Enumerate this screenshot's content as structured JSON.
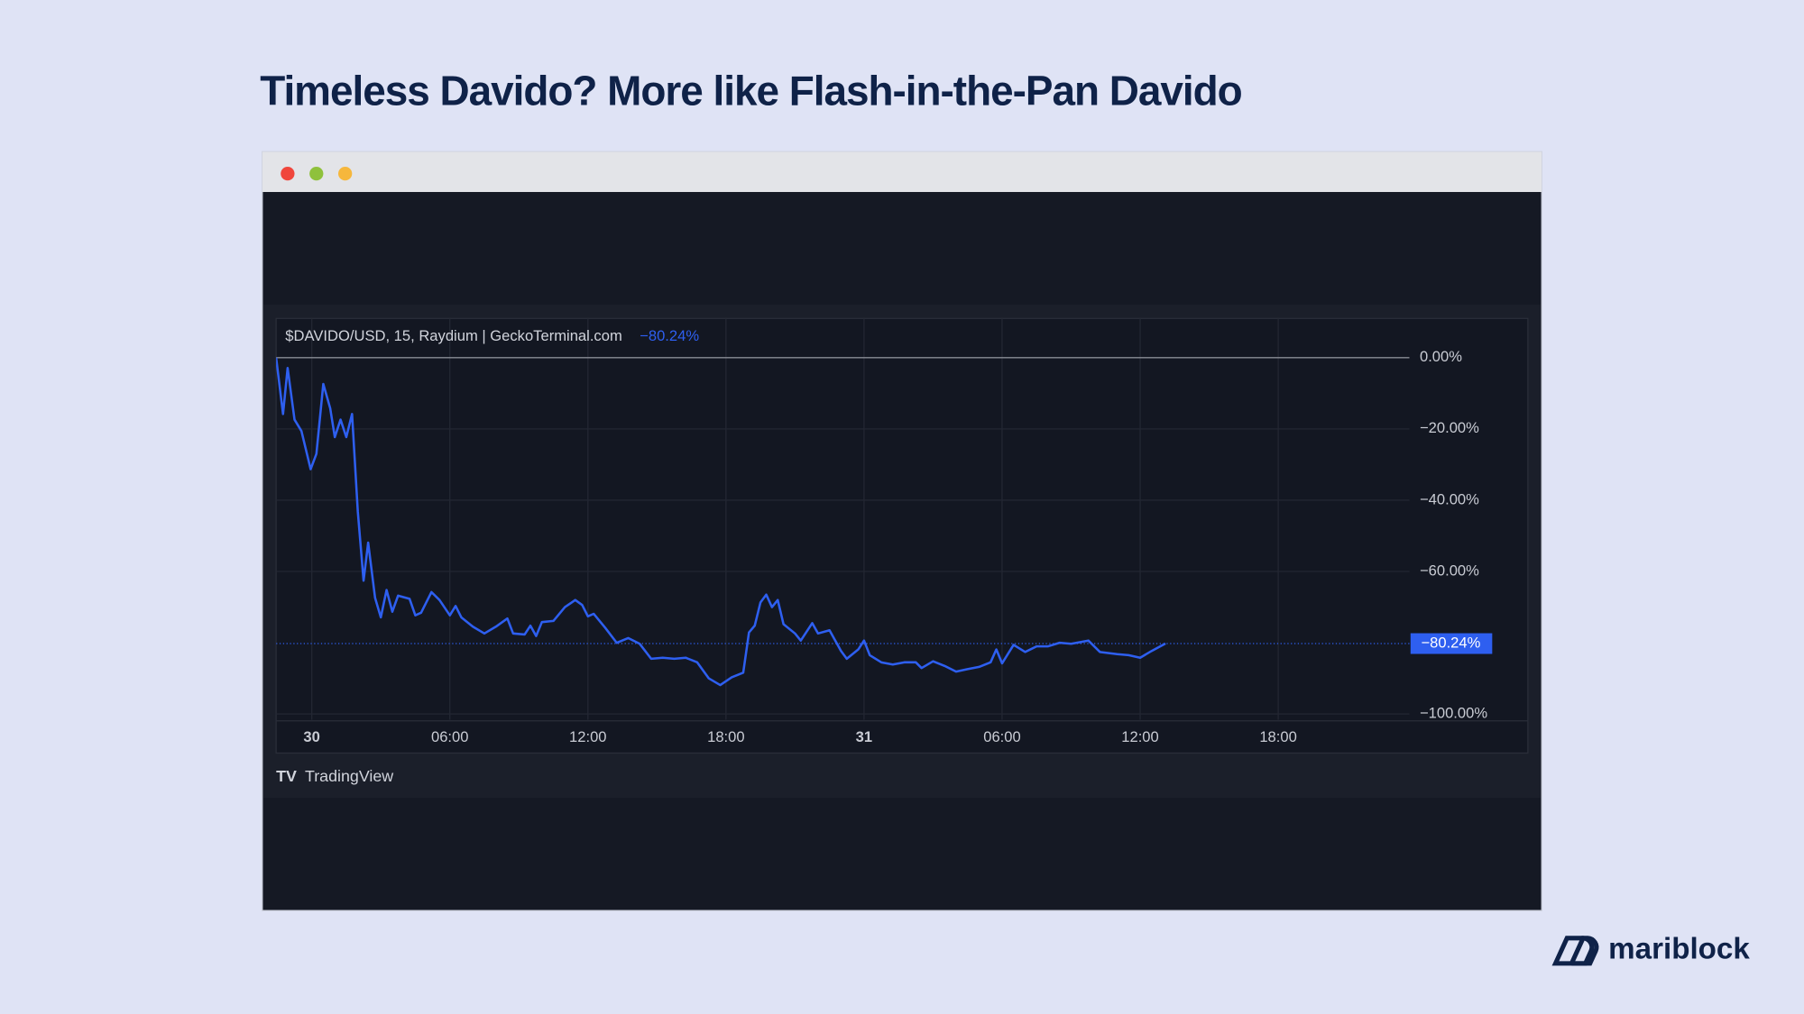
{
  "chart_data": {
    "type": "line",
    "title": "Timeless Davido? More like Flash-in-the-Pan Davido",
    "symbol_label": "$DAVIDO/USD, 15, Raydium | GeckoTerminal.com",
    "current": {
      "value": -80.24,
      "label": "−80.24%"
    },
    "color": "#2e5ff0",
    "grid": true,
    "xlim": [
      -1.55,
      47.7
    ],
    "ylim": [
      -101.6,
      11
    ],
    "xticks": [
      {
        "value": 0,
        "label": "30"
      },
      {
        "value": 6,
        "label": "06:00"
      },
      {
        "value": 12,
        "label": "12:00"
      },
      {
        "value": 18,
        "label": "18:00"
      },
      {
        "value": 24,
        "label": "31"
      },
      {
        "value": 30,
        "label": "06:00"
      },
      {
        "value": 36,
        "label": "12:00"
      },
      {
        "value": 42,
        "label": "18:00"
      }
    ],
    "yticks": [
      {
        "value": 0,
        "label": "0.00%"
      },
      {
        "value": -20,
        "label": "−20.00%"
      },
      {
        "value": -40,
        "label": "−40.00%"
      },
      {
        "value": -60,
        "label": "−60.00%"
      },
      {
        "value": -100,
        "label": "−100.00%"
      }
    ],
    "x": [
      -1.55,
      -1.25,
      -1.05,
      -0.75,
      -0.45,
      -0.05,
      0.2,
      0.5,
      0.8,
      1.0,
      1.25,
      1.5,
      1.75,
      2.0,
      2.25,
      2.45,
      2.75,
      3.0,
      3.25,
      3.5,
      3.75,
      4.25,
      4.5,
      4.75,
      5.2,
      5.55,
      6.0,
      6.25,
      6.5,
      7.0,
      7.5,
      8.0,
      8.5,
      8.75,
      9.25,
      9.5,
      9.75,
      10.0,
      10.5,
      11.0,
      11.45,
      11.75,
      12.0,
      12.25,
      12.75,
      13.25,
      13.75,
      14.25,
      14.75,
      15.25,
      15.75,
      16.25,
      16.75,
      17.25,
      17.75,
      18.25,
      18.75,
      19.0,
      19.25,
      19.5,
      19.75,
      20.0,
      20.25,
      20.5,
      21.0,
      21.25,
      21.75,
      22.0,
      22.5,
      23.0,
      23.25,
      23.75,
      24.0,
      24.25,
      24.75,
      25.25,
      25.75,
      26.25,
      26.5,
      27.0,
      27.5,
      28.0,
      28.5,
      29.0,
      29.5,
      29.75,
      30.0,
      30.5,
      31.0,
      31.5,
      32.0,
      32.5,
      33.0,
      33.75,
      34.25,
      35.0,
      35.5,
      36.0,
      36.5,
      37.1
    ],
    "values": [
      0,
      -15.8,
      -2.9,
      -17.4,
      -20.6,
      -31.3,
      -27,
      -7.4,
      -14.2,
      -22.3,
      -17.4,
      -22.3,
      -15.8,
      -43.2,
      -62.6,
      -51.9,
      -67.4,
      -72.9,
      -65.2,
      -71.3,
      -66.8,
      -67.7,
      -72.3,
      -71.6,
      -65.8,
      -68,
      -72.3,
      -69.7,
      -72.9,
      -75.5,
      -77.4,
      -75.5,
      -73.2,
      -77.4,
      -77.7,
      -75.2,
      -78.1,
      -74.2,
      -73.9,
      -70,
      -68,
      -69.4,
      -72.6,
      -71.9,
      -75.8,
      -80,
      -78.7,
      -80.3,
      -84.5,
      -84.2,
      -84.5,
      -84.2,
      -85.5,
      -90,
      -91.9,
      -89.7,
      -88.4,
      -77.1,
      -75.2,
      -68.7,
      -66.5,
      -70,
      -68,
      -74.8,
      -77.4,
      -79.4,
      -74.5,
      -77.4,
      -76.5,
      -82.3,
      -84.5,
      -81.9,
      -79.4,
      -83.5,
      -85.5,
      -86.1,
      -85.5,
      -85.5,
      -87.1,
      -85.2,
      -86.5,
      -88.1,
      -87.4,
      -86.8,
      -85.5,
      -81.9,
      -85.8,
      -80.6,
      -82.6,
      -81,
      -81,
      -80,
      -80.3,
      -79.4,
      -82.6,
      -83.2,
      -83.5,
      -84.2,
      -82.3,
      -80.24
    ]
  },
  "footer": {
    "tradingview": "TradingView",
    "brand": "mariblock"
  }
}
